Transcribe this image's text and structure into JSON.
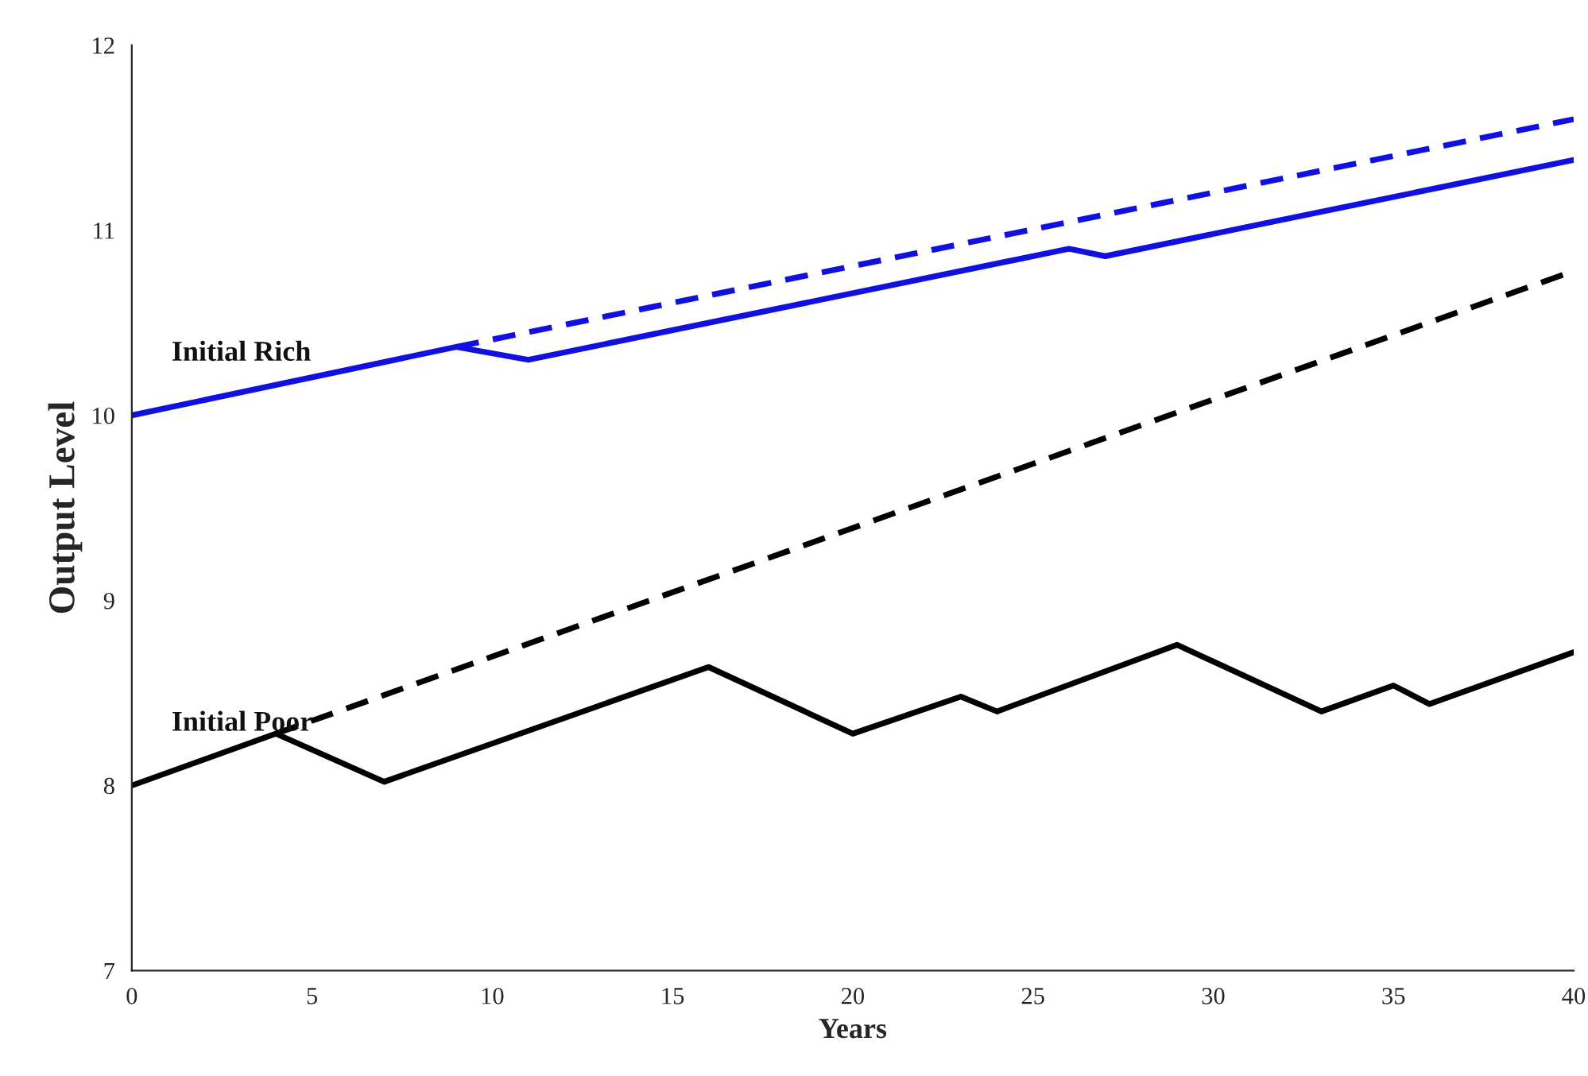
{
  "chart_data": {
    "type": "line",
    "xlabel": "Years",
    "ylabel": "Output Level",
    "xlim": [
      0,
      40
    ],
    "ylim": [
      7,
      12
    ],
    "xticks": [
      0,
      5,
      10,
      15,
      20,
      25,
      30,
      35,
      40
    ],
    "yticks": [
      7,
      8,
      9,
      10,
      11,
      12
    ],
    "grid": false,
    "legend": false,
    "series": [
      {
        "name": "Initial Rich",
        "color": "#1010e0",
        "line_style": "solid",
        "x": [
          0,
          9,
          11,
          26,
          27,
          40
        ],
        "values": [
          10.0,
          10.37,
          10.3,
          10.9,
          10.86,
          11.38
        ]
      },
      {
        "color": "#1010e0",
        "line_style": "dashed",
        "x": [
          9,
          40
        ],
        "values": [
          10.37,
          11.6
        ]
      },
      {
        "name": "Initial Poor",
        "color": "#000000",
        "line_style": "solid",
        "x": [
          0,
          4,
          7,
          16,
          20,
          23,
          24,
          29,
          33,
          35,
          36,
          40
        ],
        "values": [
          8.0,
          8.28,
          8.02,
          8.64,
          8.28,
          8.48,
          8.4,
          8.76,
          8.4,
          8.54,
          8.44,
          8.72
        ]
      },
      {
        "color": "#000000",
        "line_style": "dashed",
        "x": [
          4,
          40
        ],
        "values": [
          8.28,
          10.78
        ]
      }
    ]
  }
}
